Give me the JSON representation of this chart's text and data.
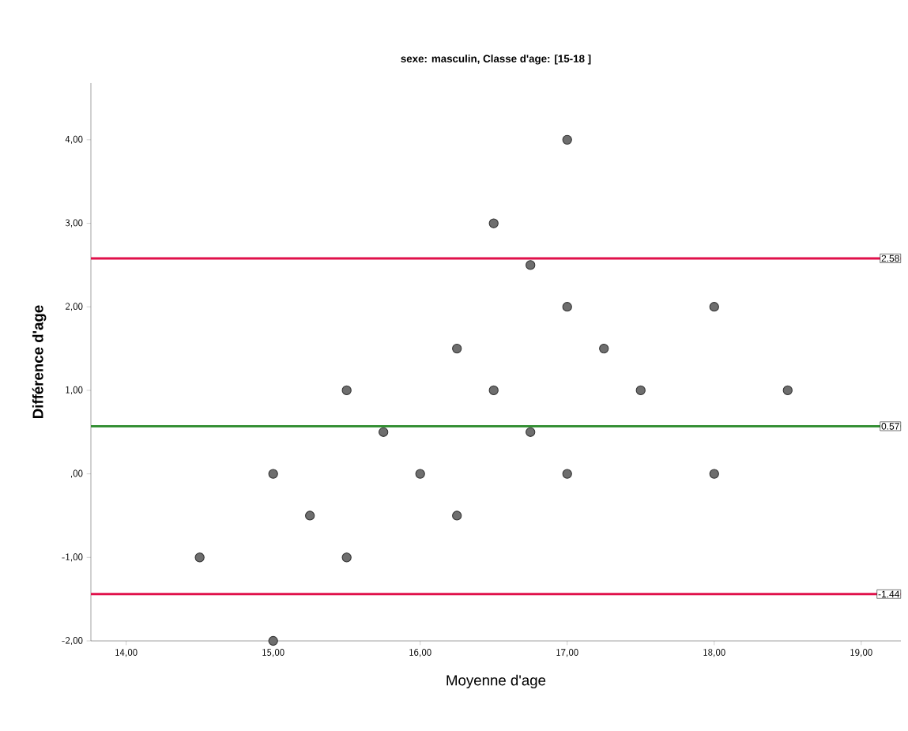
{
  "chart_data": {
    "type": "scatter",
    "title": "sexe: masculin, Classe d'age: [15-18 ]",
    "xlabel": "Moyenne d'age",
    "ylabel": "Différence d'age",
    "x": [
      14.5,
      15,
      15,
      15.25,
      15.5,
      15.5,
      15.75,
      16,
      16.25,
      16.25,
      16.5,
      16.5,
      16.75,
      16.75,
      17,
      17,
      17,
      17.25,
      17.5,
      18,
      18,
      18.5
    ],
    "series": [
      {
        "color": "#6e6e6e",
        "values": [
          -1,
          0,
          -2,
          -0.5,
          1,
          -1,
          0.5,
          0,
          1.5,
          -0.5,
          3,
          1,
          2.5,
          0.5,
          4,
          2,
          0,
          1.5,
          1,
          2,
          0,
          1
        ]
      }
    ],
    "xlim": [
      13.76,
      19.27
    ],
    "ylim": [
      -2,
      4.68
    ],
    "xticks": [
      {
        "value": 14,
        "label": "14,00"
      },
      {
        "value": 15,
        "label": "15,00"
      },
      {
        "value": 16,
        "label": "16,00"
      },
      {
        "value": 17,
        "label": "17,00"
      },
      {
        "value": 18,
        "label": "18,00"
      },
      {
        "value": 19,
        "label": "19,00"
      }
    ],
    "yticks": [
      {
        "value": -2,
        "label": "-2,00"
      },
      {
        "value": -1,
        "label": "-1,00"
      },
      {
        "value": 0,
        "label": ",00"
      },
      {
        "value": 1,
        "label": "1,00"
      },
      {
        "value": 2,
        "label": "2,00"
      },
      {
        "value": 3,
        "label": "3,00"
      },
      {
        "value": 4,
        "label": "4,00"
      }
    ],
    "ref_lines": [
      {
        "axis": "y",
        "value": 2.58,
        "label": "2.58",
        "color": "#e0104a"
      },
      {
        "axis": "y",
        "value": 0.57,
        "label": "0.57",
        "color": "#2a8a2a"
      },
      {
        "axis": "y",
        "value": -1.44,
        "label": "-1.44",
        "color": "#e0104a"
      }
    ],
    "grid": false,
    "legend": false
  }
}
